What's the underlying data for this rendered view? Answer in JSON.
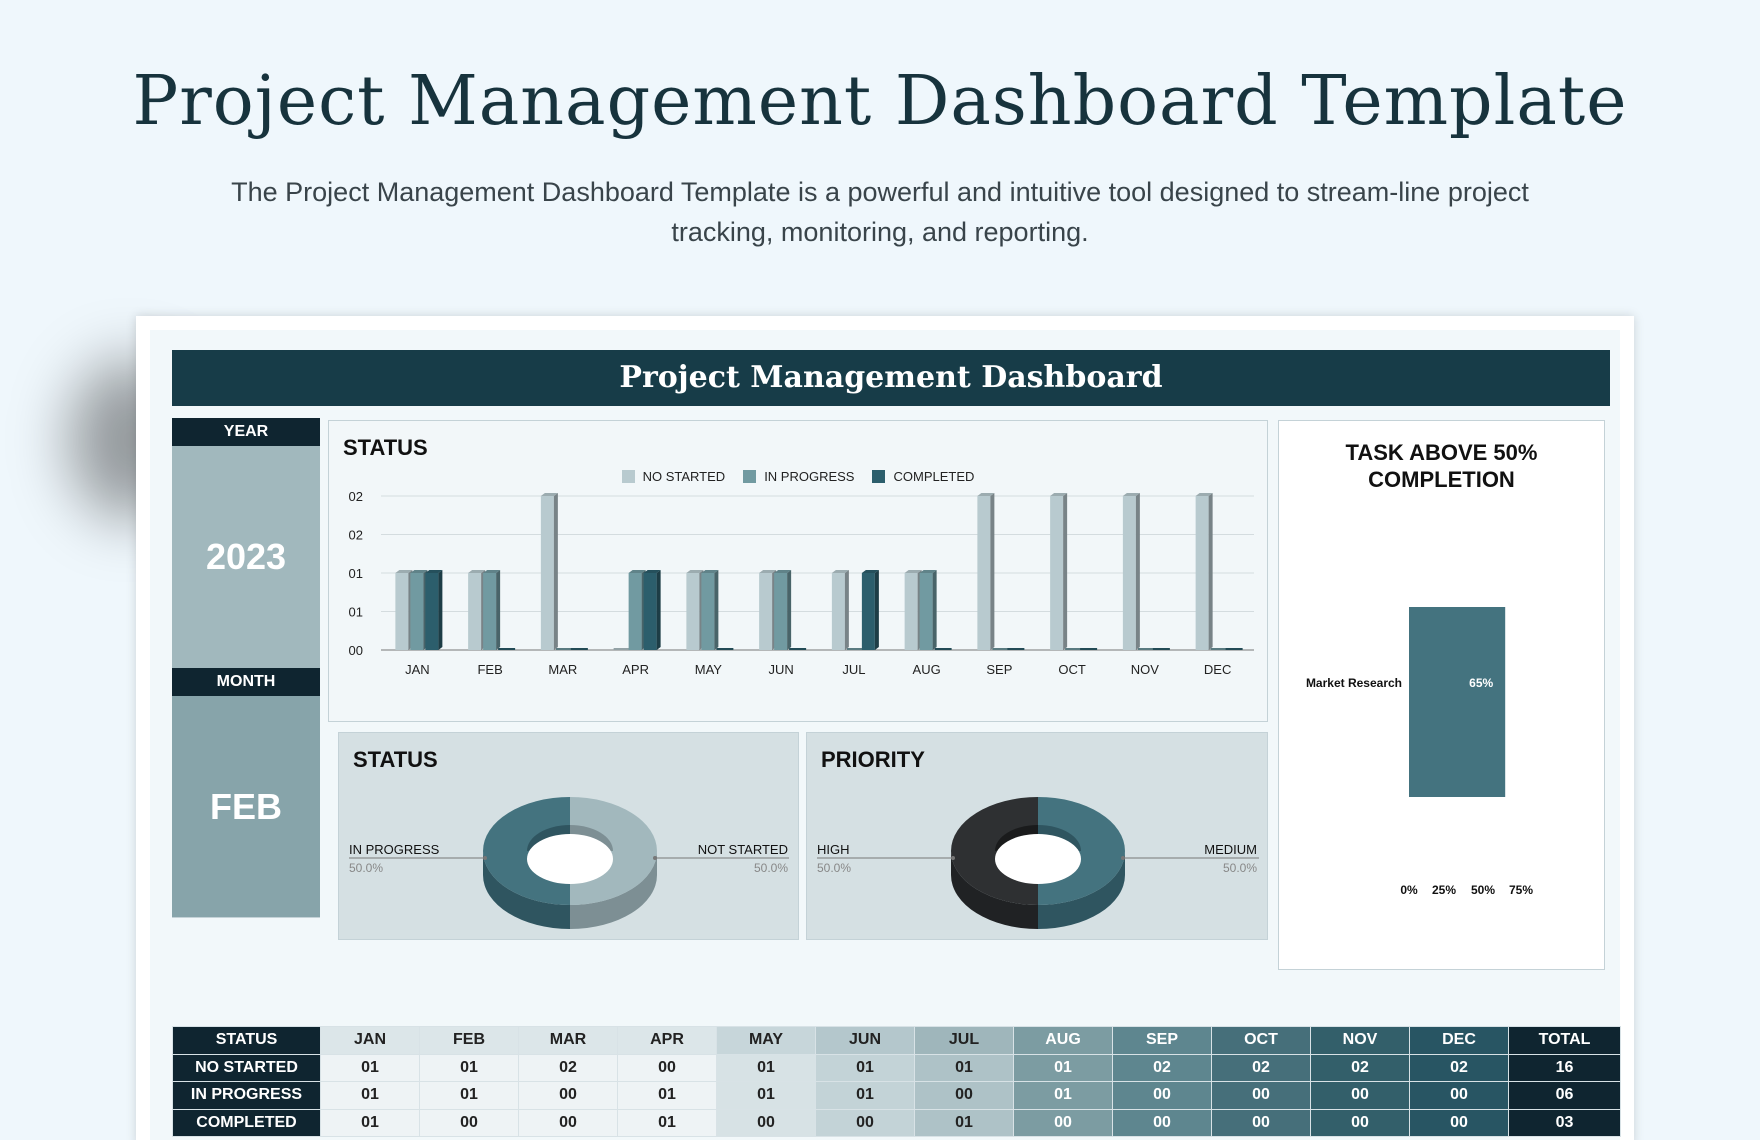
{
  "hero": {
    "title": "Project Management Dashboard Template",
    "subtitle": "The Project Management Dashboard Template is a powerful and intuitive tool designed to stream-line project tracking, monitoring, and reporting."
  },
  "dashboard": {
    "title": "Project Management Dashboard",
    "year_label": "YEAR",
    "year_value": "2023",
    "month_label": "MONTH",
    "month_value": "FEB"
  },
  "colors": {
    "not_started": "#b8cacf",
    "in_progress": "#719aa1",
    "completed": "#2c5e6c",
    "dark": "#0f2530",
    "banner": "#173c48",
    "donut_high": "#2e3032",
    "donut_medium": "#44737f"
  },
  "chart_data": [
    {
      "type": "bar",
      "title": "STATUS",
      "categories": [
        "JAN",
        "FEB",
        "MAR",
        "APR",
        "MAY",
        "JUN",
        "JUL",
        "AUG",
        "SEP",
        "OCT",
        "NOV",
        "DEC"
      ],
      "series": [
        {
          "name": "NO STARTED",
          "values": [
            1,
            1,
            2,
            0,
            1,
            1,
            1,
            1,
            2,
            2,
            2,
            2
          ]
        },
        {
          "name": "IN PROGRESS",
          "values": [
            1,
            1,
            0,
            1,
            1,
            1,
            0,
            1,
            0,
            0,
            0,
            0
          ]
        },
        {
          "name": "COMPLETED",
          "values": [
            1,
            0,
            0,
            1,
            0,
            0,
            1,
            0,
            0,
            0,
            0,
            0
          ]
        }
      ],
      "yticks": [
        "00",
        "01",
        "01",
        "02",
        "02"
      ],
      "ylim": [
        0,
        2
      ],
      "grid": true,
      "legend": "top"
    },
    {
      "type": "pie",
      "title": "STATUS",
      "slices": [
        {
          "label": "IN PROGRESS",
          "value": 50.0,
          "pct": "50.0%"
        },
        {
          "label": "NOT STARTED",
          "value": 50.0,
          "pct": "50.0%"
        }
      ]
    },
    {
      "type": "pie",
      "title": "PRIORITY",
      "slices": [
        {
          "label": "HIGH",
          "value": 50.0,
          "pct": "50.0%"
        },
        {
          "label": "MEDIUM",
          "value": 50.0,
          "pct": "50.0%"
        }
      ]
    },
    {
      "type": "bar",
      "title": "TASK ABOVE 50% COMPLETION",
      "categories": [
        "Market Research"
      ],
      "values": [
        65
      ],
      "value_labels": [
        "65%"
      ],
      "xticks": [
        "0%",
        "25%",
        "50%",
        "75%"
      ]
    }
  ],
  "table": {
    "header": [
      "STATUS",
      "JAN",
      "FEB",
      "MAR",
      "APR",
      "MAY",
      "JUN",
      "JUL",
      "AUG",
      "SEP",
      "OCT",
      "NOV",
      "DEC",
      "TOTAL"
    ],
    "rows": [
      [
        "NO STARTED",
        "01",
        "01",
        "02",
        "00",
        "01",
        "01",
        "01",
        "01",
        "02",
        "02",
        "02",
        "02",
        "16"
      ],
      [
        "IN PROGRESS",
        "01",
        "01",
        "00",
        "01",
        "01",
        "01",
        "00",
        "01",
        "00",
        "00",
        "00",
        "00",
        "06"
      ],
      [
        "COMPLETED",
        "01",
        "00",
        "00",
        "01",
        "00",
        "00",
        "01",
        "00",
        "00",
        "00",
        "00",
        "00",
        "03"
      ]
    ]
  }
}
